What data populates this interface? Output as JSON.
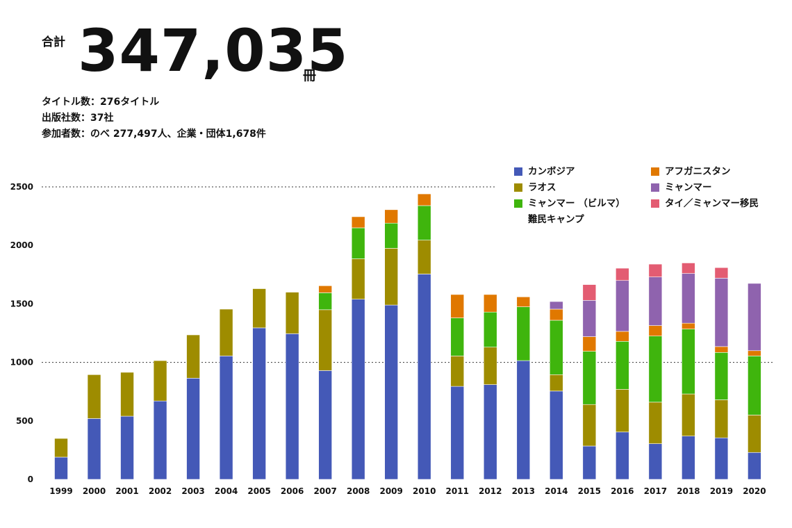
{
  "header": {
    "total_label": "合計",
    "total_value": "347,035",
    "total_unit": "冊",
    "stats": [
      "タイトル数：276タイトル",
      "出版社数：37社",
      "参加者数：のべ 277,497人、企業・団体1,678件"
    ]
  },
  "colors": {
    "cambodia": "#4459b7",
    "laos": "#9e8c00",
    "myanmar_camp": "#3fb50d",
    "afghanistan": "#e07800",
    "myanmar": "#8f63ae",
    "thai_myanmar_migrant": "#e35c72"
  },
  "legend": [
    {
      "label": "カンボジア",
      "color": "#4459b7"
    },
    {
      "label": "アフガニスタン",
      "color": "#e07800"
    },
    {
      "label": "ラオス",
      "color": "#9e8c00"
    },
    {
      "label": "ミャンマー",
      "color": "#8f63ae"
    },
    {
      "label": "ミャンマー （ビルマ）\n難民キャンプ",
      "color": "#3fb50d"
    },
    {
      "label": "タイ／ミャンマー移民",
      "color": "#e35c72"
    }
  ],
  "chart_data": {
    "type": "bar",
    "stacked": true,
    "categories": [
      "1999",
      "2000",
      "2001",
      "2002",
      "2003",
      "2004",
      "2005",
      "2006",
      "2007",
      "2008",
      "2009",
      "2010",
      "2011",
      "2012",
      "2013",
      "2014",
      "2015",
      "2016",
      "2017",
      "2018",
      "2019",
      "2020"
    ],
    "ylim": [
      0,
      2500
    ],
    "yticks": [
      0,
      500,
      1000,
      1500,
      2000,
      2500
    ],
    "dotted_gridlines": [
      1000,
      2500
    ],
    "series": [
      {
        "name": "カンボジア",
        "color": "#4459b7",
        "values": [
          190,
          520,
          540,
          670,
          865,
          1055,
          1295,
          1245,
          930,
          1540,
          1490,
          1755,
          795,
          810,
          1015,
          755,
          285,
          405,
          305,
          370,
          355,
          230
        ]
      },
      {
        "name": "ラオス",
        "color": "#9e8c00",
        "values": [
          160,
          375,
          375,
          345,
          370,
          400,
          335,
          355,
          520,
          345,
          485,
          290,
          260,
          320,
          0,
          140,
          355,
          365,
          355,
          360,
          325,
          320
        ]
      },
      {
        "name": "ミャンマー （ビルマ）難民キャンプ",
        "color": "#3fb50d",
        "values": [
          0,
          0,
          0,
          0,
          0,
          0,
          0,
          0,
          145,
          265,
          215,
          295,
          325,
          300,
          460,
          465,
          455,
          410,
          565,
          555,
          405,
          505
        ]
      },
      {
        "name": "アフガニスタン",
        "color": "#e07800",
        "values": [
          0,
          0,
          0,
          0,
          0,
          0,
          0,
          0,
          60,
          95,
          115,
          100,
          200,
          150,
          85,
          95,
          125,
          85,
          90,
          50,
          50,
          45
        ]
      },
      {
        "name": "ミャンマー",
        "color": "#8f63ae",
        "values": [
          0,
          0,
          0,
          0,
          0,
          0,
          0,
          0,
          0,
          0,
          0,
          0,
          0,
          0,
          0,
          65,
          310,
          435,
          415,
          425,
          585,
          575
        ]
      },
      {
        "name": "タイ／ミャンマー移民",
        "color": "#e35c72",
        "values": [
          0,
          0,
          0,
          0,
          0,
          0,
          0,
          0,
          0,
          0,
          0,
          0,
          0,
          0,
          0,
          0,
          135,
          105,
          110,
          90,
          90,
          0
        ]
      }
    ]
  }
}
